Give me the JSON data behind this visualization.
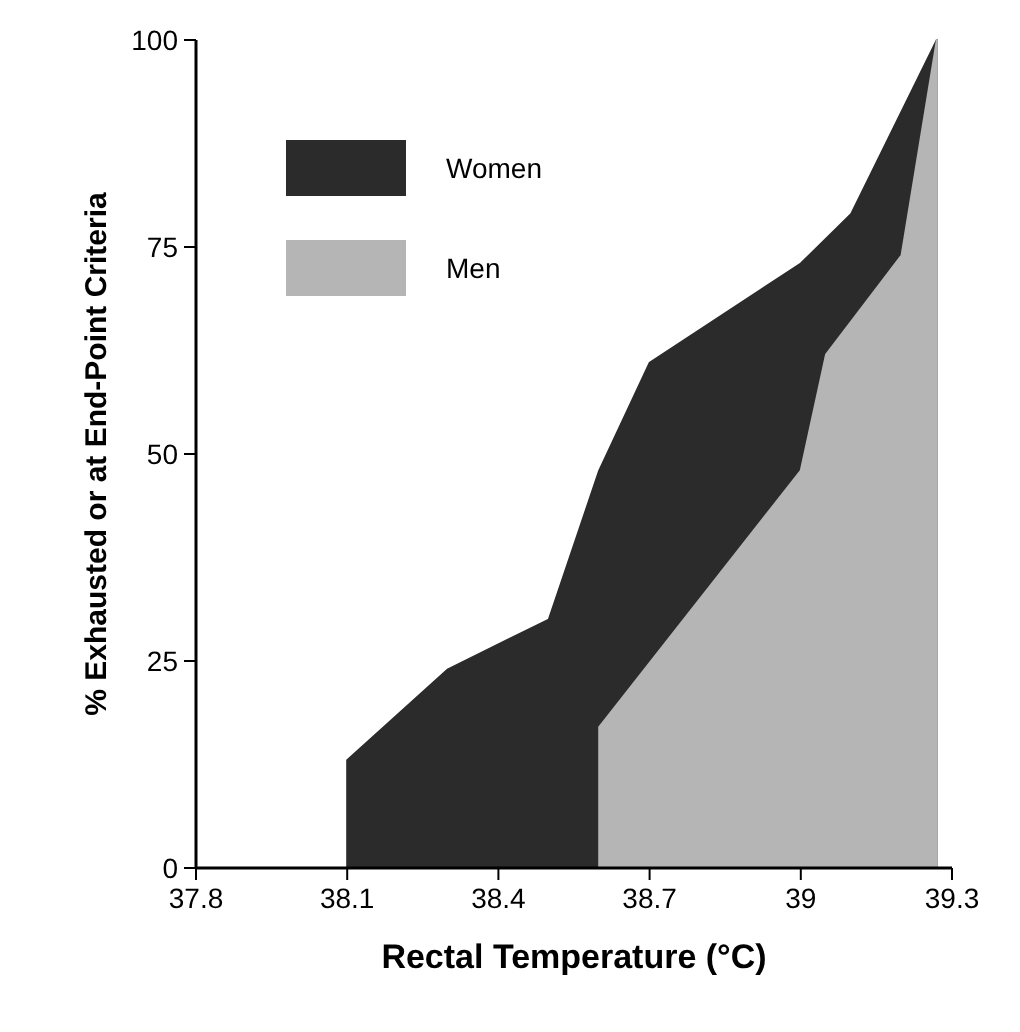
{
  "chart_data": {
    "type": "area",
    "xlabel": "Rectal Temperature (°C)",
    "ylabel": "% Exhausted or at End-Point Criteria",
    "xlim": [
      37.8,
      39.3
    ],
    "xticks": [
      37.8,
      38.1,
      38.4,
      38.7,
      39,
      39.3
    ],
    "ylim": [
      0,
      100
    ],
    "yticks": [
      0,
      25,
      50,
      75,
      100
    ],
    "grid": false,
    "legend": "top left",
    "series": [
      {
        "name": "Women",
        "color": "#2b2b2b",
        "x": [
          38.1,
          38.1,
          38.3,
          38.5,
          38.6,
          38.7,
          39.0,
          39.1,
          39.27,
          39.27
        ],
        "values": [
          0,
          13,
          24,
          30,
          48,
          61,
          73,
          79,
          100,
          0
        ]
      },
      {
        "name": "Men",
        "color": "#b5b5b5",
        "x": [
          38.6,
          38.6,
          39.0,
          39.05,
          39.2,
          39.27,
          39.27
        ],
        "values": [
          0,
          17,
          48,
          62,
          74,
          100,
          0
        ]
      }
    ]
  }
}
